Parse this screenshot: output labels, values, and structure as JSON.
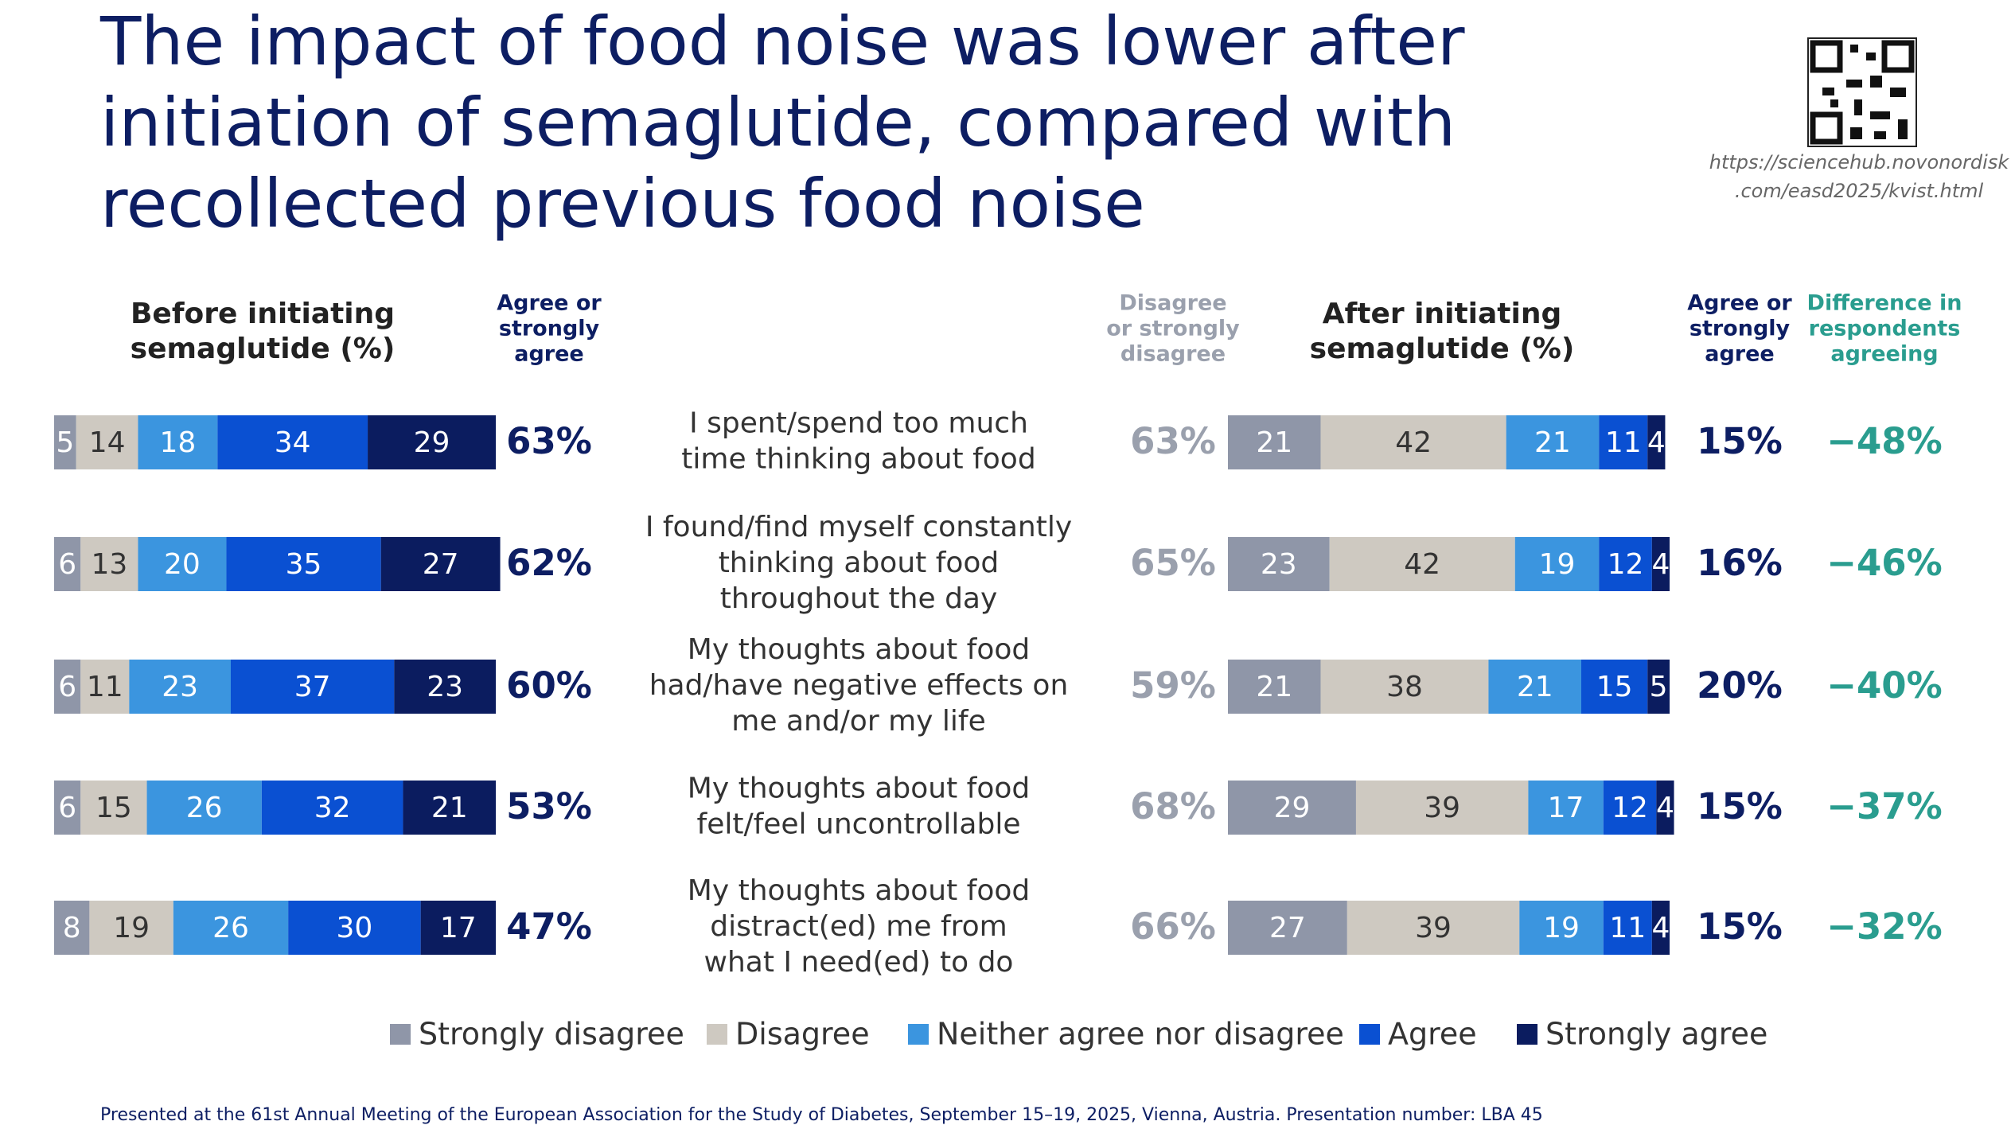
{
  "title": [
    "The impact of food noise was lower after",
    "initiation of semaglutide, compared with",
    "recollected previous food noise"
  ],
  "qr_url": [
    "https://sciencehub.novonordisk",
    ".com/easd2025/kvist.html"
  ],
  "statements": [
    [
      "I spent/spend too much",
      "time thinking about food"
    ],
    [
      "I found/find myself constantly",
      "thinking about food",
      "throughout the day"
    ],
    [
      "My thoughts about food",
      "had/have negative effects on",
      "me and/or my life"
    ],
    [
      "My thoughts about food",
      "felt/feel uncontrollable"
    ],
    [
      "My thoughts about food",
      "distract(ed) me from",
      "what I need(ed) to do"
    ]
  ],
  "chart_data": [
    {
      "type": "bar",
      "orientation": "horizontal",
      "stacked": true,
      "title": [
        "Before initiating",
        "semaglutide (%)"
      ],
      "xlim": [
        0,
        100
      ],
      "series": [
        {
          "name": "Strongly disagree",
          "color": "#8f96a8",
          "values": [
            5,
            6,
            6,
            6,
            8
          ]
        },
        {
          "name": "Disagree",
          "color": "#cec9c1",
          "values": [
            14,
            13,
            11,
            15,
            19
          ]
        },
        {
          "name": "Neither agree nor disagree",
          "color": "#3b95df",
          "values": [
            18,
            20,
            23,
            26,
            26
          ]
        },
        {
          "name": "Agree",
          "color": "#0a50d2",
          "values": [
            34,
            35,
            37,
            32,
            30
          ]
        },
        {
          "name": "Strongly agree",
          "color": "#0b1c5f",
          "values": [
            29,
            27,
            23,
            21,
            17
          ]
        }
      ]
    },
    {
      "type": "bar",
      "orientation": "horizontal",
      "stacked": true,
      "title": [
        "After initiating",
        "semaglutide (%)"
      ],
      "xlim": [
        0,
        100
      ],
      "series": [
        {
          "color": "#8f96a8",
          "values": [
            21,
            23,
            21,
            29,
            27
          ]
        },
        {
          "color": "#cec9c1",
          "values": [
            42,
            42,
            38,
            39,
            39
          ]
        },
        {
          "color": "#3b95df",
          "values": [
            21,
            19,
            21,
            17,
            19
          ]
        },
        {
          "color": "#0a50d2",
          "values": [
            11,
            12,
            15,
            12,
            11
          ]
        },
        {
          "color": "#0b1c5f",
          "values": [
            4,
            4,
            5,
            4,
            4
          ]
        }
      ]
    }
  ],
  "columns": [
    {
      "header": [
        "Agree or",
        "strongly",
        "agree"
      ],
      "color": "#0d1e63",
      "values": [
        63,
        62,
        60,
        53,
        47
      ],
      "value_labels": [
        "63%",
        "62%",
        "60%",
        "53%",
        "47%"
      ]
    },
    {
      "header": [
        "Disagree",
        "or strongly",
        "disagree"
      ],
      "color": "#9aa0ad",
      "values": [
        63,
        65,
        59,
        68,
        66
      ],
      "value_labels": [
        "63%",
        "65%",
        "59%",
        "68%",
        "66%"
      ]
    },
    {
      "header": [
        "Agree or",
        "strongly",
        "agree"
      ],
      "color": "#0d1e63",
      "values": [
        15,
        16,
        20,
        15,
        15
      ],
      "value_labels": [
        "15%",
        "16%",
        "20%",
        "15%",
        "15%"
      ]
    },
    {
      "header": [
        "Difference in",
        "respondents",
        "agreeing"
      ],
      "color": "#2a9d8f",
      "values": [
        -48,
        -46,
        -40,
        -37,
        -32
      ],
      "value_labels": [
        "−48%",
        "−46%",
        "−40%",
        "−37%",
        "−32%"
      ]
    }
  ],
  "footer": "Presented at the 61st Annual Meeting of the European Association for the Study of Diabetes, September 15–19, 2025, Vienna, Austria. Presentation number: LBA 45"
}
